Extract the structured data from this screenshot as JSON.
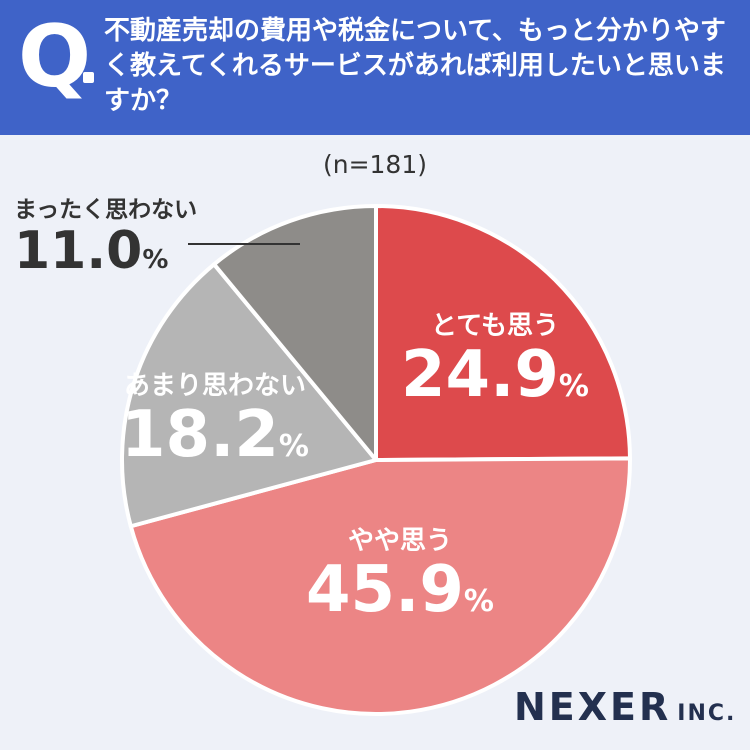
{
  "header": {
    "q_mark": "Q",
    "question": "不動産売却の費用や税金について、もっと分かりやすく教えてくれるサービスがあれば利用したいと思いますか？"
  },
  "sample_label": "(n=181)",
  "logo": {
    "main": "NEXER",
    "sub": "INC."
  },
  "colors": {
    "header_bg": "#3f63c8",
    "background": "#eef1f8",
    "slice_1": "#dd4a4c",
    "slice_2": "#ec8585",
    "slice_3": "#b5b5b5",
    "slice_4": "#8e8c89"
  },
  "chart_data": {
    "type": "pie",
    "start_angle": "12 o'clock, clockwise",
    "slices": [
      {
        "label": "とても思う",
        "value": 24.9,
        "display": "24.9",
        "unit": "%",
        "color": "#dd4a4c"
      },
      {
        "label": "やや思う",
        "value": 45.9,
        "display": "45.9",
        "unit": "%",
        "color": "#ec8585"
      },
      {
        "label": "あまり思わない",
        "value": 18.2,
        "display": "18.2",
        "unit": "%",
        "color": "#b5b5b5"
      },
      {
        "label": "まったく思わない",
        "value": 11.0,
        "display": "11.0",
        "unit": "%",
        "color": "#8e8c89"
      }
    ]
  }
}
